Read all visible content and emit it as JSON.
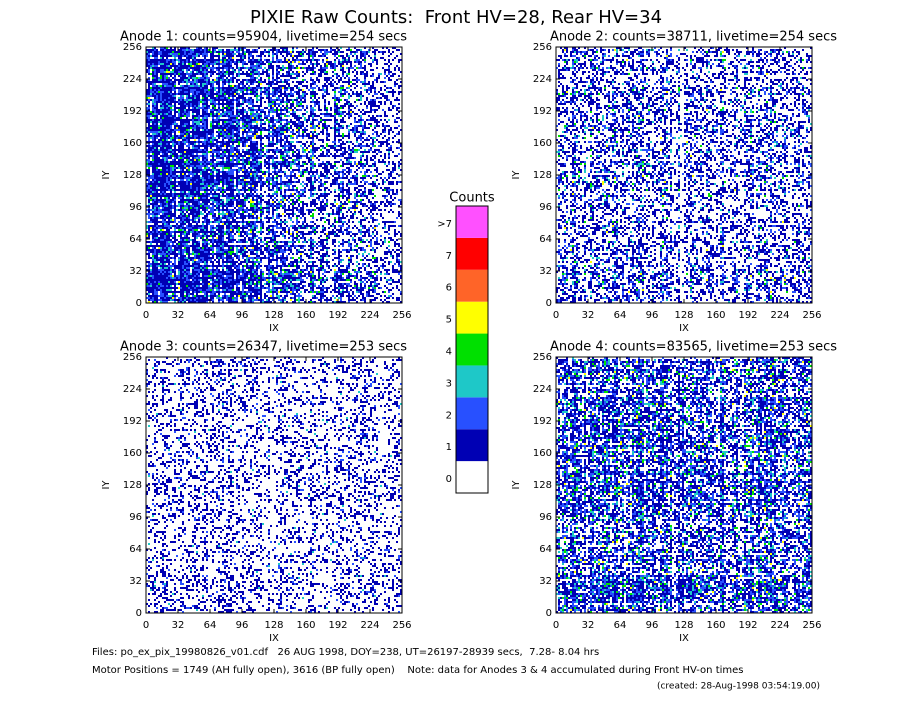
{
  "title": "PIXIE Raw Counts:  Front HV=28, Rear HV=34",
  "colorbar": {
    "title": "Counts",
    "levels": [
      0,
      1,
      2,
      3,
      4,
      5,
      6,
      7,
      ">7"
    ],
    "colors": [
      "#ffffff",
      "#0000b4",
      "#2850ff",
      "#1ec8c8",
      "#00e000",
      "#ffff00",
      "#ff6428",
      "#ff0000",
      "#ff50ff"
    ]
  },
  "footer": [
    "Files: po_ex_pix_19980826_v01.cdf   26 AUG 1998, DOY=238, UT=26197-28939 secs,  7.28- 8.04 hrs",
    "Motor Positions = 1749 (AH fully open), 3616 (BP fully open)    Note: data for Anodes 3 & 4 accumulated during Front HV-on times",
    "(created: 28-Aug-1998 03:54:19.00)"
  ],
  "chart_data": [
    {
      "type": "heatmap",
      "title": "Anode 1: counts=95904, livetime=254 secs",
      "x_label": "IX",
      "y_label": "IY",
      "xlim": [
        0,
        256
      ],
      "ylim": [
        0,
        256
      ],
      "xticks": [
        0,
        32,
        64,
        96,
        128,
        160,
        192,
        224,
        256
      ],
      "yticks": [
        0,
        32,
        64,
        96,
        128,
        160,
        192,
        224,
        256
      ]
    },
    {
      "type": "heatmap",
      "title": "Anode 2: counts=38711, livetime=254 secs",
      "x_label": "IX",
      "y_label": "IY",
      "xlim": [
        0,
        256
      ],
      "ylim": [
        0,
        256
      ],
      "xticks": [
        0,
        32,
        64,
        96,
        128,
        160,
        192,
        224,
        256
      ],
      "yticks": [
        0,
        32,
        64,
        96,
        128,
        160,
        192,
        224,
        256
      ]
    },
    {
      "type": "heatmap",
      "title": "Anode 3: counts=26347, livetime=253 secs",
      "x_label": "IX",
      "y_label": "IY",
      "xlim": [
        0,
        256
      ],
      "ylim": [
        0,
        256
      ],
      "xticks": [
        0,
        32,
        64,
        96,
        128,
        160,
        192,
        224,
        256
      ],
      "yticks": [
        0,
        32,
        64,
        96,
        128,
        160,
        192,
        224,
        256
      ]
    },
    {
      "type": "heatmap",
      "title": "Anode 4: counts=83565, livetime=253 secs",
      "x_label": "IX",
      "y_label": "IY",
      "xlim": [
        0,
        256
      ],
      "ylim": [
        0,
        256
      ],
      "xticks": [
        0,
        32,
        64,
        96,
        128,
        160,
        192,
        224,
        256
      ],
      "yticks": [
        0,
        32,
        64,
        96,
        128,
        160,
        192,
        224,
        256
      ]
    }
  ]
}
